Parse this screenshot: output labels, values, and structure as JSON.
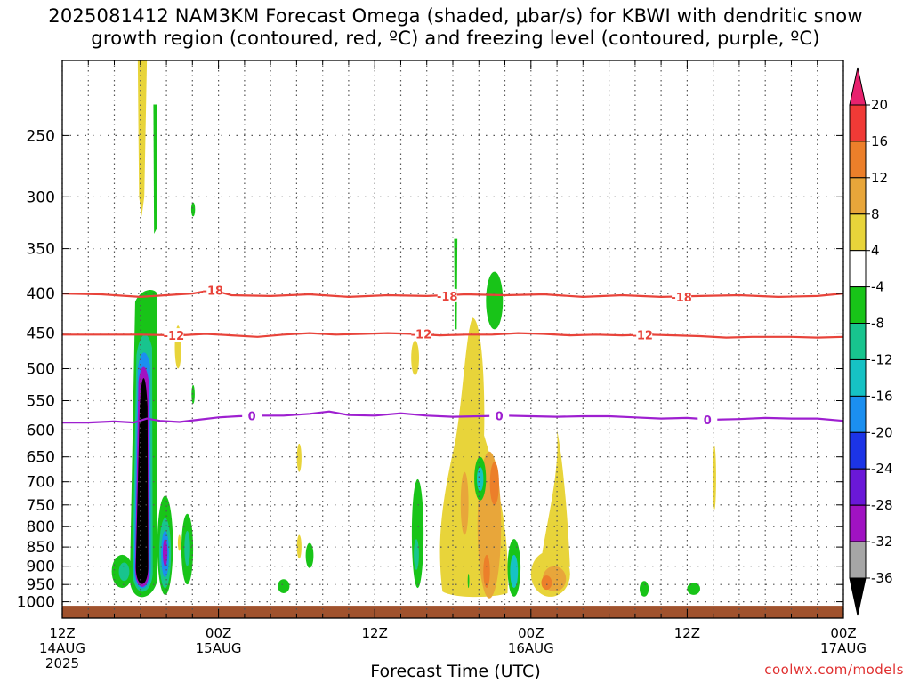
{
  "title": {
    "line1": "2025081412 NAM3KM Forecast Omega (shaded, μbar/s) for KBWI with dendritic snow",
    "line2": "growth region (contoured, red, ºC) and freezing level (contoured, purple, ºC)"
  },
  "credit": "coolwx.com/models",
  "chart_data": {
    "type": "heatmap",
    "title": "2025081412 NAM3KM Forecast Omega (shaded, μbar/s) for KBWI with dendritic snow growth region (contoured, red, ºC) and freezing level (contoured, purple, ºC)",
    "xlabel": "Forecast Time (UTC)",
    "ylabel": "",
    "x_range_hours": [
      0,
      60
    ],
    "y_axis": "pressure (hPa), log scale, inverted",
    "y_range": [
      1050,
      200
    ],
    "x_ticks": [
      {
        "hour": 0,
        "label": [
          "12Z",
          "14AUG",
          "2025"
        ]
      },
      {
        "hour": 12,
        "label": [
          "00Z",
          "15AUG"
        ]
      },
      {
        "hour": 24,
        "label": [
          "12Z"
        ]
      },
      {
        "hour": 36,
        "label": [
          "00Z",
          "16AUG"
        ]
      },
      {
        "hour": 48,
        "label": [
          "12Z"
        ]
      },
      {
        "hour": 60,
        "label": [
          "00Z",
          "17AUG"
        ]
      }
    ],
    "y_ticks": [
      250,
      300,
      350,
      400,
      450,
      500,
      550,
      600,
      650,
      700,
      750,
      800,
      850,
      900,
      950,
      1000
    ],
    "grid": true,
    "colorbar": {
      "labels": [
        "20",
        "16",
        "12",
        "8",
        "4",
        "-4",
        "-8",
        "-12",
        "-16",
        "-20",
        "-24",
        "-28",
        "-32",
        "-36"
      ],
      "colors": [
        "#e8226e",
        "#f03a36",
        "#ec7f2a",
        "#e8a63a",
        "#e8d43a",
        "#ffffff",
        "#18c418",
        "#18c48e",
        "#16c2c4",
        "#1b8ff0",
        "#1c34e6",
        "#6a18d8",
        "#a012c2",
        "#a6a6a6",
        "#000000"
      ]
    },
    "contours": [
      {
        "name": "-18",
        "color": "#e8433a",
        "labels_at_hours": [
          11.5,
          29.5,
          47.5
        ],
        "points": [
          [
            0,
            400
          ],
          [
            3,
            401
          ],
          [
            6,
            404
          ],
          [
            9,
            401
          ],
          [
            10,
            400
          ],
          [
            11.5,
            396
          ],
          [
            13,
            402
          ],
          [
            16,
            403
          ],
          [
            19,
            401
          ],
          [
            22,
            404
          ],
          [
            25,
            402
          ],
          [
            28,
            403
          ],
          [
            31,
            401
          ],
          [
            34,
            402
          ],
          [
            37,
            401
          ],
          [
            40,
            404
          ],
          [
            43,
            402
          ],
          [
            46,
            404
          ],
          [
            49,
            403
          ],
          [
            52,
            402
          ],
          [
            55,
            404
          ],
          [
            58,
            403
          ],
          [
            60,
            400
          ]
        ]
      },
      {
        "name": "-12",
        "color": "#e8433a",
        "labels_at_hours": [
          8.5,
          27.5,
          44.5
        ],
        "points": [
          [
            0,
            452
          ],
          [
            3,
            452
          ],
          [
            6,
            452
          ],
          [
            9,
            453
          ],
          [
            11,
            451
          ],
          [
            13,
            453
          ],
          [
            15,
            455
          ],
          [
            17,
            452
          ],
          [
            19,
            450
          ],
          [
            21,
            452
          ],
          [
            23,
            451
          ],
          [
            25,
            450
          ],
          [
            27,
            451
          ],
          [
            29,
            453
          ],
          [
            31,
            452
          ],
          [
            33,
            452
          ],
          [
            35,
            450
          ],
          [
            37,
            451
          ],
          [
            39,
            453
          ],
          [
            41,
            452
          ],
          [
            43,
            453
          ],
          [
            45,
            452
          ],
          [
            47,
            453
          ],
          [
            49,
            454
          ],
          [
            51,
            456
          ],
          [
            53,
            455
          ],
          [
            56,
            455
          ],
          [
            58,
            456
          ],
          [
            60,
            455
          ]
        ]
      },
      {
        "name": "0",
        "color": "#9e1fd0",
        "labels_at_hours": [
          14.5,
          33.5,
          49.5
        ],
        "points": [
          [
            0,
            587
          ],
          [
            2,
            587
          ],
          [
            4,
            585
          ],
          [
            5.5,
            587
          ],
          [
            6.5,
            580
          ],
          [
            7.5,
            584
          ],
          [
            9,
            586
          ],
          [
            10.5,
            582
          ],
          [
            12,
            578
          ],
          [
            13.5,
            576
          ],
          [
            15,
            575
          ],
          [
            17,
            575
          ],
          [
            19,
            572
          ],
          [
            20.5,
            568
          ],
          [
            22,
            574
          ],
          [
            24,
            575
          ],
          [
            26,
            571
          ],
          [
            28,
            575
          ],
          [
            30,
            577
          ],
          [
            32,
            576
          ],
          [
            34,
            575
          ],
          [
            36,
            576
          ],
          [
            38,
            577
          ],
          [
            40,
            576
          ],
          [
            42,
            576
          ],
          [
            44,
            578
          ],
          [
            46,
            580
          ],
          [
            48,
            579
          ],
          [
            50,
            582
          ],
          [
            52,
            581
          ],
          [
            54,
            579
          ],
          [
            56,
            580
          ],
          [
            58,
            580
          ],
          [
            60,
            584
          ]
        ]
      }
    ],
    "shaded_regions": [
      {
        "value_range": "4 to 8",
        "color": "#e8d43a",
        "center": [
          6.1,
          300
        ],
        "note": "narrow upper-level positive omega streak"
      },
      {
        "value_range": "-36 and below",
        "color": "#000000",
        "center": [
          6.1,
          700
        ],
        "note": "strong upward motion column near 14AUG 18Z"
      },
      {
        "value_range": "-8 to -4",
        "color": "#18c418",
        "center": [
          6.1,
          600
        ],
        "note": "upward motion column 400-1000 hPa"
      },
      {
        "value_range": "-32 to -28",
        "color": "#a012c2",
        "center": [
          7.9,
          860
        ],
        "note": "low-level upward motion core"
      },
      {
        "value_range": "4 to 12",
        "color": "#e8d43a",
        "center": [
          31.5,
          700
        ],
        "note": "downward motion plume 15AUG 18Z-16AUG 00Z"
      },
      {
        "value_range": "12 to 16",
        "color": "#ec7f2a",
        "center": [
          33.5,
          700
        ],
        "note": "downward motion core"
      },
      {
        "value_range": "4 to 12",
        "color": "#e8d43a",
        "center": [
          37.5,
          920
        ],
        "note": "low-level downward motion 16AUG 00Z-06Z"
      }
    ],
    "ground": {
      "color": "#a0522d",
      "from_pressure": 1012
    }
  }
}
